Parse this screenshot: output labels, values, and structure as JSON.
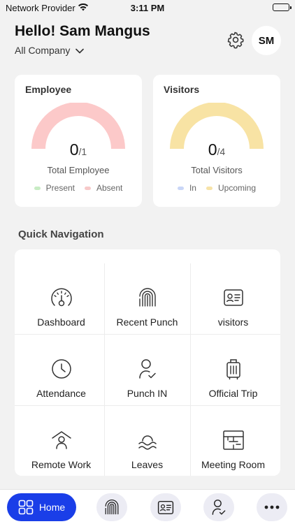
{
  "status_bar": {
    "carrier": "Network Provider",
    "time": "3:11 PM"
  },
  "header": {
    "greeting": "Hello! Sam Mangus",
    "company_selector": "All Company",
    "avatar_initials": "SM"
  },
  "employee_card": {
    "title": "Employee",
    "count": "0",
    "total": "/1",
    "label": "Total Employee",
    "legend": [
      {
        "label": "Present",
        "color": "#c8ecc4"
      },
      {
        "label": "Absent",
        "color": "#f7c9c9"
      }
    ],
    "gauge_color": "#fcc9c9"
  },
  "visitors_card": {
    "title": "Visitors",
    "count": "0",
    "total": "/4",
    "label": "Total Visitors",
    "legend": [
      {
        "label": "In",
        "color": "#c9d6f7"
      },
      {
        "label": "Upcoming",
        "color": "#f7e3a8"
      }
    ],
    "gauge_color": "#f8e3a4"
  },
  "quick_navigation": {
    "title": "Quick Navigation",
    "items": [
      {
        "label": "Dashboard",
        "icon": "speedometer-icon"
      },
      {
        "label": "Recent Punch",
        "icon": "fingerprint-icon"
      },
      {
        "label": "visitors",
        "icon": "id-card-icon"
      },
      {
        "label": "Attendance",
        "icon": "clock-icon"
      },
      {
        "label": "Punch IN",
        "icon": "user-check-icon"
      },
      {
        "label": "Official Trip",
        "icon": "luggage-icon"
      },
      {
        "label": "Remote Work",
        "icon": "home-user-icon"
      },
      {
        "label": "Leaves",
        "icon": "beach-icon"
      },
      {
        "label": "Meeting Room",
        "icon": "floor-plan-icon"
      }
    ]
  },
  "bottom_nav": {
    "home_label": "Home",
    "accent": "#1a3ee8",
    "tabs": [
      "grid-icon",
      "fingerprint-icon",
      "id-card-icon",
      "user-check-icon",
      "more-icon"
    ]
  }
}
